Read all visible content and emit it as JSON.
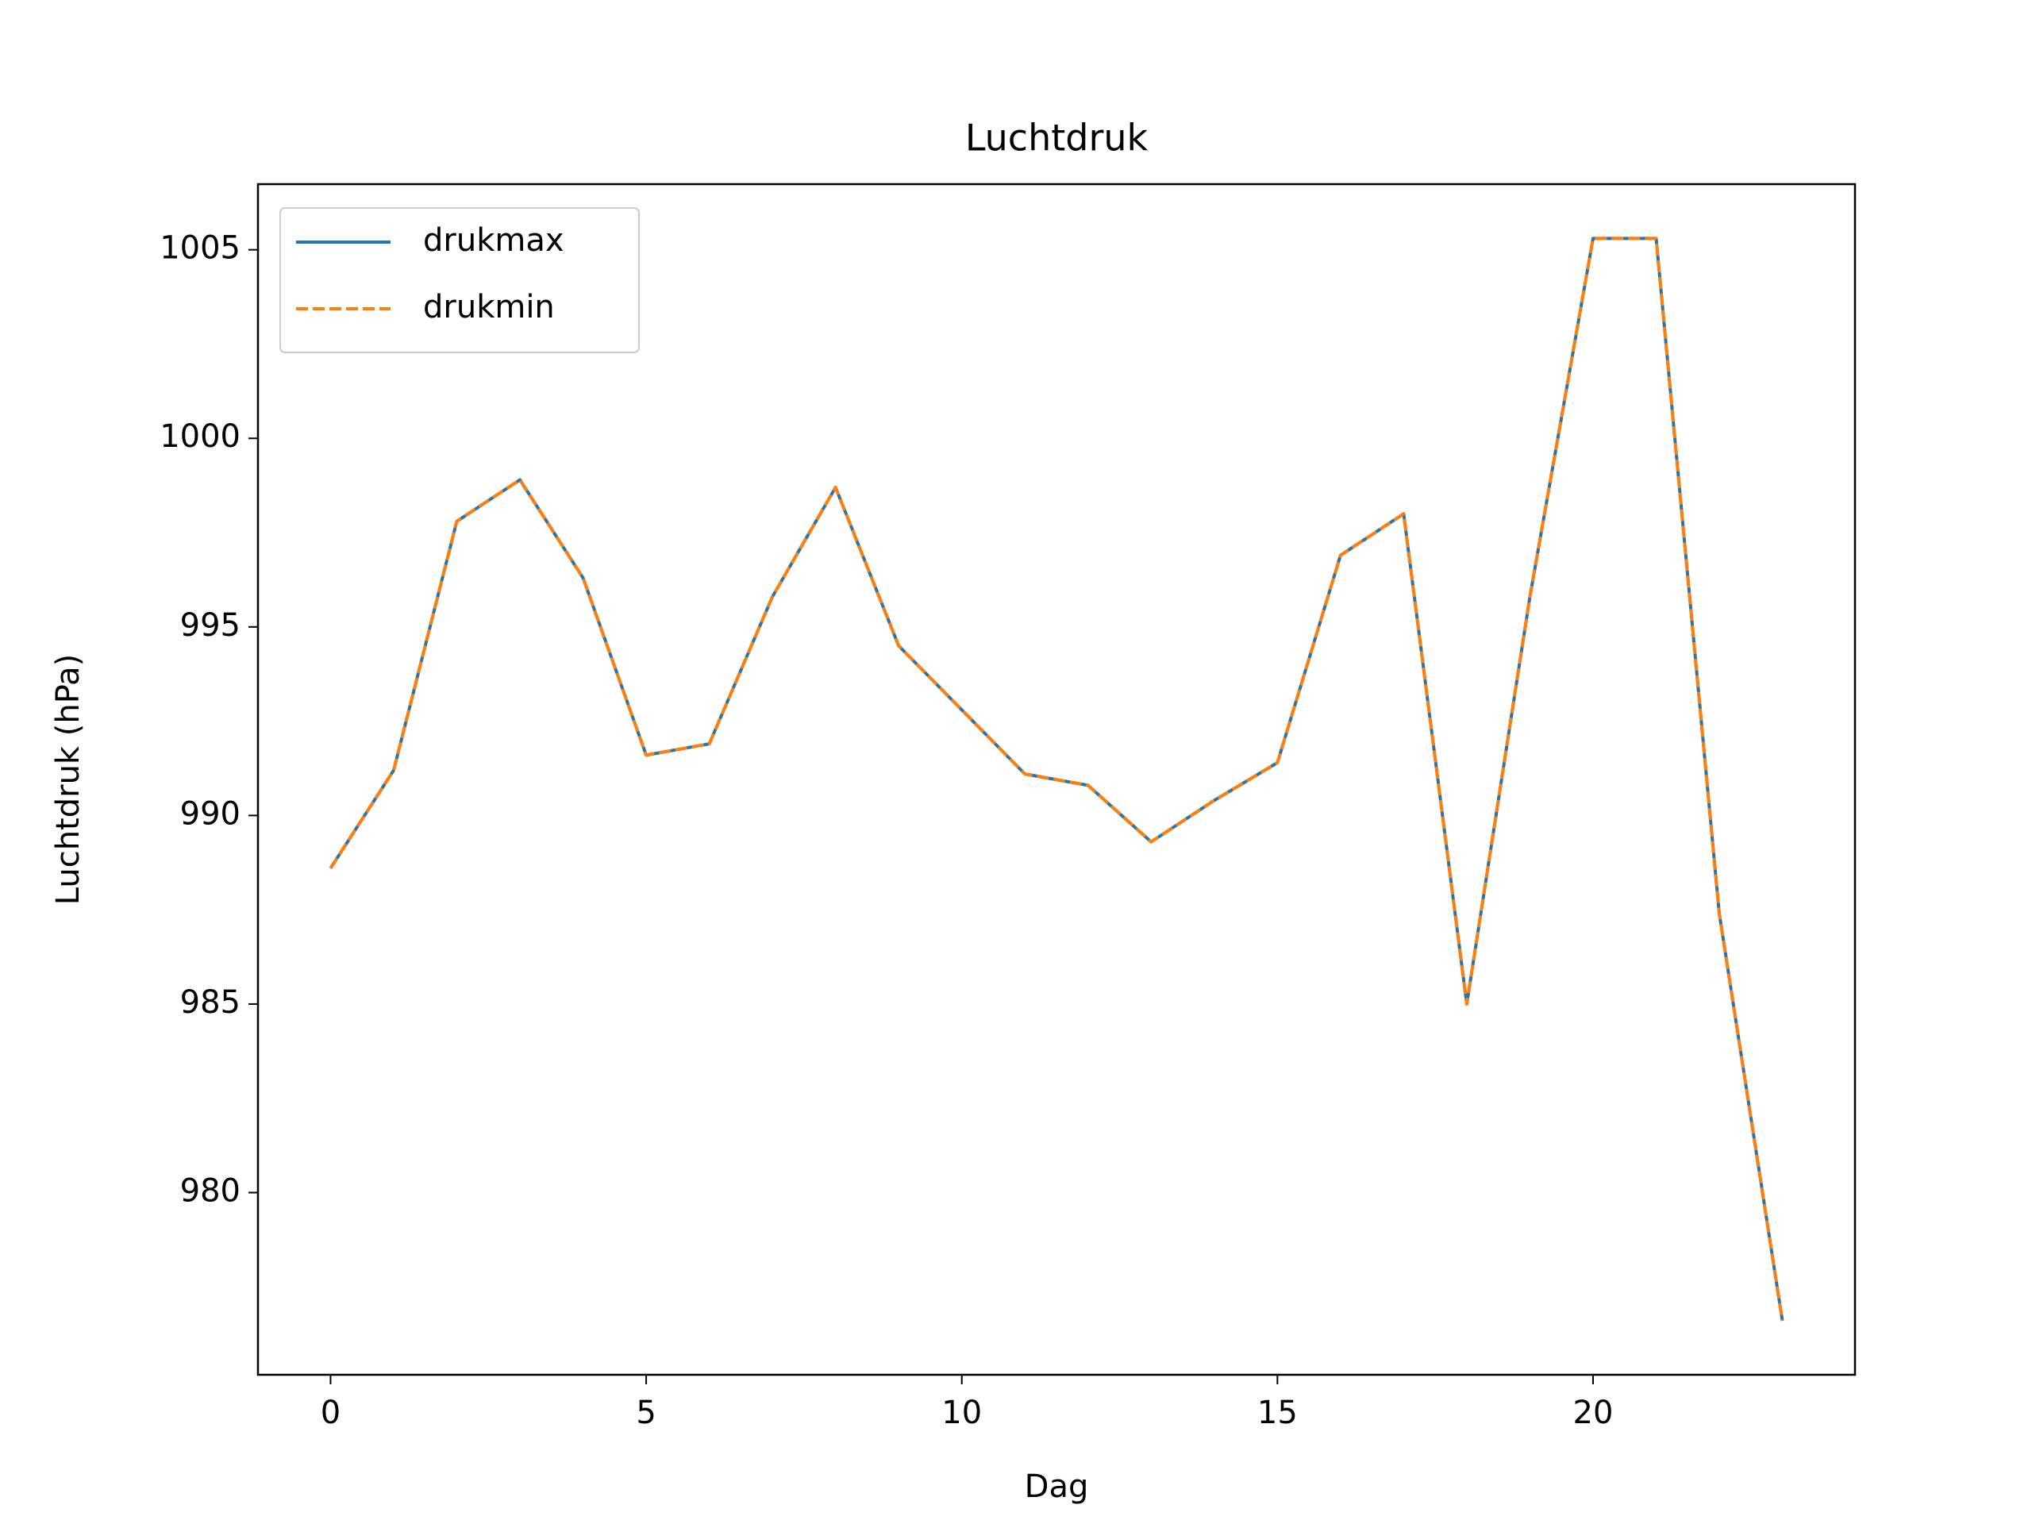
{
  "chart_data": {
    "type": "line",
    "title": "Luchtdruk",
    "x_label": "Dag",
    "y_label": "Luchtdruk (hPa)",
    "x": [
      0,
      1,
      2,
      3,
      4,
      5,
      6,
      7,
      8,
      9,
      10,
      11,
      12,
      13,
      14,
      15,
      16,
      17,
      18,
      19,
      20,
      21,
      22,
      23
    ],
    "series": [
      {
        "name": "drukmax",
        "color": "#1f77b4",
        "dash": "solid",
        "values": [
          988.6,
          991.2,
          997.8,
          998.9,
          996.3,
          991.6,
          991.9,
          995.8,
          998.7,
          994.5,
          992.8,
          991.1,
          990.8,
          989.3,
          990.4,
          991.4,
          996.9,
          998.0,
          985.0,
          995.8,
          1005.3,
          1005.3,
          987.4,
          976.6
        ]
      },
      {
        "name": "drukmin",
        "color": "#ff7f0e",
        "dash": "dashed",
        "values": [
          988.6,
          991.2,
          997.8,
          998.9,
          996.3,
          991.6,
          991.9,
          995.8,
          998.7,
          994.5,
          992.8,
          991.1,
          990.8,
          989.3,
          990.4,
          991.4,
          996.9,
          998.0,
          985.0,
          995.8,
          1005.3,
          1005.3,
          987.4,
          976.6
        ]
      }
    ],
    "xlim": [
      -1.15,
      24.15
    ],
    "ylim": [
      975.17,
      1006.74
    ],
    "xticks": [
      0,
      5,
      10,
      15,
      20
    ],
    "yticks": [
      980,
      985,
      990,
      995,
      1000,
      1005
    ],
    "legend": "upper left",
    "grid": false
  }
}
